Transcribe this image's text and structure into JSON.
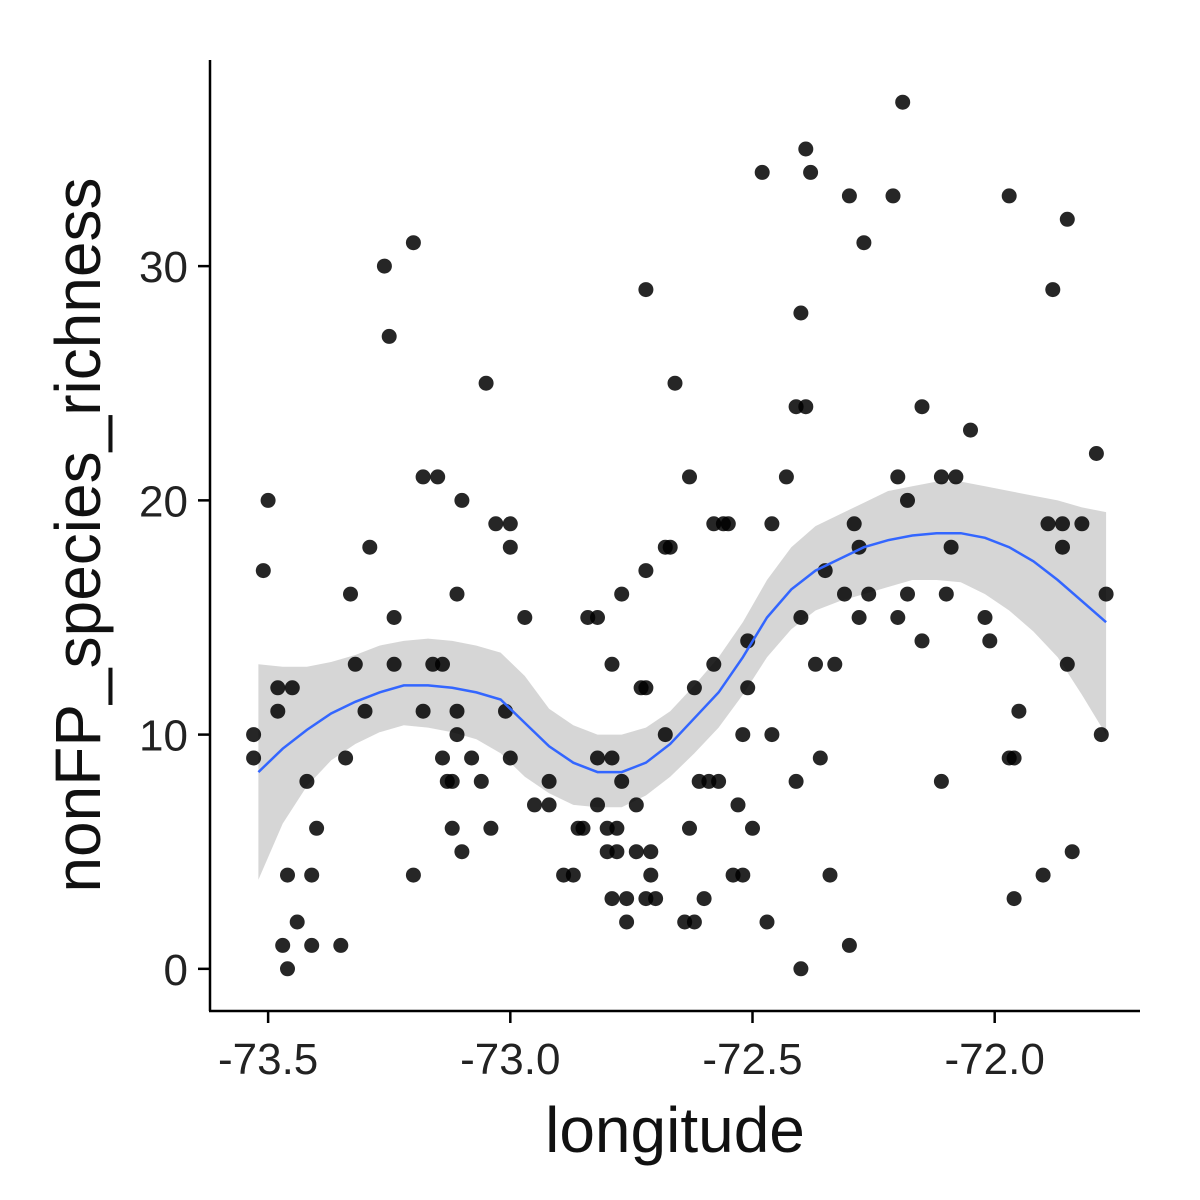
{
  "chart_data": {
    "type": "scatter",
    "title": "",
    "xlabel": "longitude",
    "ylabel": "nonFP_species_richness",
    "xlim": [
      -73.62,
      -71.7
    ],
    "ylim": [
      -1.8,
      38.8
    ],
    "x_ticks": [
      {
        "value": -73.5,
        "label": "-73.5"
      },
      {
        "value": -73.0,
        "label": "-73.0"
      },
      {
        "value": -72.5,
        "label": "-72.5"
      },
      {
        "value": -72.0,
        "label": "-72.0"
      }
    ],
    "y_ticks": [
      {
        "value": 0,
        "label": "0"
      },
      {
        "value": 10,
        "label": "10"
      },
      {
        "value": 20,
        "label": "20"
      },
      {
        "value": 30,
        "label": "30"
      }
    ],
    "grid": false,
    "colors": {
      "points": "#000000",
      "smooth_line": "#3366FF",
      "confidence_band": "#cccccc"
    },
    "points": [
      [
        -73.53,
        10
      ],
      [
        -73.53,
        9
      ],
      [
        -73.51,
        17
      ],
      [
        -73.5,
        20
      ],
      [
        -73.48,
        12
      ],
      [
        -73.48,
        11
      ],
      [
        -73.47,
        1
      ],
      [
        -73.46,
        0
      ],
      [
        -73.46,
        4
      ],
      [
        -73.45,
        12
      ],
      [
        -73.44,
        2
      ],
      [
        -73.42,
        8
      ],
      [
        -73.41,
        1
      ],
      [
        -73.41,
        4
      ],
      [
        -73.4,
        6
      ],
      [
        -73.35,
        1
      ],
      [
        -73.34,
        9
      ],
      [
        -73.33,
        16
      ],
      [
        -73.32,
        13
      ],
      [
        -73.3,
        11
      ],
      [
        -73.29,
        18
      ],
      [
        -73.26,
        30
      ],
      [
        -73.25,
        27
      ],
      [
        -73.24,
        15
      ],
      [
        -73.24,
        13
      ],
      [
        -73.2,
        31
      ],
      [
        -73.2,
        4
      ],
      [
        -73.18,
        11
      ],
      [
        -73.18,
        21
      ],
      [
        -73.16,
        13
      ],
      [
        -73.15,
        21
      ],
      [
        -73.14,
        13
      ],
      [
        -73.14,
        9
      ],
      [
        -73.13,
        8
      ],
      [
        -73.12,
        6
      ],
      [
        -73.12,
        8
      ],
      [
        -73.11,
        11
      ],
      [
        -73.11,
        10
      ],
      [
        -73.11,
        16
      ],
      [
        -73.1,
        20
      ],
      [
        -73.1,
        5
      ],
      [
        -73.08,
        9
      ],
      [
        -73.06,
        8
      ],
      [
        -73.05,
        25
      ],
      [
        -73.04,
        6
      ],
      [
        -73.03,
        19
      ],
      [
        -73.01,
        11
      ],
      [
        -73.0,
        18
      ],
      [
        -73.0,
        9
      ],
      [
        -73.0,
        19
      ],
      [
        -72.97,
        15
      ],
      [
        -72.95,
        7
      ],
      [
        -72.92,
        7
      ],
      [
        -72.92,
        8
      ],
      [
        -72.89,
        4
      ],
      [
        -72.87,
        4
      ],
      [
        -72.86,
        6
      ],
      [
        -72.85,
        6
      ],
      [
        -72.84,
        15
      ],
      [
        -72.82,
        15
      ],
      [
        -72.82,
        7
      ],
      [
        -72.82,
        9
      ],
      [
        -72.8,
        6
      ],
      [
        -72.8,
        5
      ],
      [
        -72.79,
        13
      ],
      [
        -72.79,
        9
      ],
      [
        -72.79,
        3
      ],
      [
        -72.78,
        6
      ],
      [
        -72.78,
        5
      ],
      [
        -72.77,
        8
      ],
      [
        -72.77,
        16
      ],
      [
        -72.76,
        3
      ],
      [
        -72.76,
        2
      ],
      [
        -72.74,
        7
      ],
      [
        -72.74,
        5
      ],
      [
        -72.73,
        12
      ],
      [
        -72.72,
        17
      ],
      [
        -72.72,
        12
      ],
      [
        -72.72,
        3
      ],
      [
        -72.71,
        5
      ],
      [
        -72.71,
        4
      ],
      [
        -72.72,
        29
      ],
      [
        -72.7,
        3
      ],
      [
        -72.68,
        18
      ],
      [
        -72.68,
        10
      ],
      [
        -72.67,
        18
      ],
      [
        -72.66,
        25
      ],
      [
        -72.64,
        2
      ],
      [
        -72.63,
        21
      ],
      [
        -72.63,
        6
      ],
      [
        -72.62,
        12
      ],
      [
        -72.62,
        2
      ],
      [
        -72.61,
        8
      ],
      [
        -72.6,
        3
      ],
      [
        -72.59,
        8
      ],
      [
        -72.58,
        13
      ],
      [
        -72.58,
        19
      ],
      [
        -72.57,
        8
      ],
      [
        -72.56,
        19
      ],
      [
        -72.55,
        19
      ],
      [
        -72.54,
        4
      ],
      [
        -72.53,
        7
      ],
      [
        -72.52,
        4
      ],
      [
        -72.52,
        10
      ],
      [
        -72.51,
        14
      ],
      [
        -72.51,
        12
      ],
      [
        -72.5,
        6
      ],
      [
        -72.48,
        34
      ],
      [
        -72.47,
        2
      ],
      [
        -72.46,
        10
      ],
      [
        -72.46,
        19
      ],
      [
        -72.43,
        21
      ],
      [
        -72.41,
        8
      ],
      [
        -72.41,
        24
      ],
      [
        -72.4,
        28
      ],
      [
        -72.4,
        0
      ],
      [
        -72.4,
        15
      ],
      [
        -72.39,
        35
      ],
      [
        -72.39,
        24
      ],
      [
        -72.38,
        34
      ],
      [
        -72.37,
        13
      ],
      [
        -72.36,
        9
      ],
      [
        -72.35,
        17
      ],
      [
        -72.34,
        4
      ],
      [
        -72.33,
        13
      ],
      [
        -72.31,
        16
      ],
      [
        -72.3,
        33
      ],
      [
        -72.3,
        1
      ],
      [
        -72.29,
        19
      ],
      [
        -72.28,
        15
      ],
      [
        -72.28,
        18
      ],
      [
        -72.27,
        31
      ],
      [
        -72.26,
        16
      ],
      [
        -72.21,
        33
      ],
      [
        -72.2,
        21
      ],
      [
        -72.2,
        15
      ],
      [
        -72.19,
        37
      ],
      [
        -72.18,
        16
      ],
      [
        -72.18,
        20
      ],
      [
        -72.15,
        14
      ],
      [
        -72.15,
        24
      ],
      [
        -72.11,
        21
      ],
      [
        -72.11,
        8
      ],
      [
        -72.1,
        16
      ],
      [
        -72.09,
        18
      ],
      [
        -72.08,
        21
      ],
      [
        -72.05,
        23
      ],
      [
        -72.02,
        15
      ],
      [
        -72.01,
        14
      ],
      [
        -71.97,
        33
      ],
      [
        -71.97,
        9
      ],
      [
        -71.96,
        3
      ],
      [
        -71.96,
        9
      ],
      [
        -71.95,
        11
      ],
      [
        -71.9,
        4
      ],
      [
        -71.89,
        19
      ],
      [
        -71.88,
        29
      ],
      [
        -71.86,
        18
      ],
      [
        -71.86,
        19
      ],
      [
        -71.85,
        32
      ],
      [
        -71.85,
        13
      ],
      [
        -71.84,
        5
      ],
      [
        -71.82,
        19
      ],
      [
        -71.79,
        22
      ],
      [
        -71.78,
        10
      ],
      [
        -71.77,
        16
      ]
    ],
    "smooth": {
      "x": [
        -73.52,
        -73.47,
        -73.42,
        -73.37,
        -73.32,
        -73.27,
        -73.22,
        -73.17,
        -73.12,
        -73.07,
        -73.02,
        -72.97,
        -72.92,
        -72.87,
        -72.82,
        -72.77,
        -72.72,
        -72.67,
        -72.62,
        -72.57,
        -72.52,
        -72.47,
        -72.42,
        -72.37,
        -72.32,
        -72.27,
        -72.22,
        -72.17,
        -72.12,
        -72.07,
        -72.02,
        -71.97,
        -71.92,
        -71.87,
        -71.82,
        -71.77
      ],
      "fit": [
        8.4,
        9.4,
        10.2,
        10.9,
        11.4,
        11.8,
        12.1,
        12.1,
        12.0,
        11.8,
        11.5,
        10.5,
        9.5,
        8.8,
        8.4,
        8.4,
        8.8,
        9.6,
        10.7,
        11.8,
        13.3,
        15.0,
        16.2,
        17.0,
        17.5,
        18.0,
        18.3,
        18.5,
        18.6,
        18.6,
        18.4,
        18.0,
        17.4,
        16.6,
        15.7,
        14.8
      ],
      "lower": [
        3.8,
        6.2,
        7.8,
        8.9,
        9.6,
        10.1,
        10.4,
        10.3,
        10.1,
        9.8,
        9.2,
        8.2,
        7.5,
        7.0,
        6.9,
        6.9,
        7.4,
        8.2,
        9.2,
        10.3,
        11.7,
        13.3,
        14.5,
        15.3,
        15.7,
        16.0,
        16.3,
        16.6,
        16.6,
        16.5,
        16.0,
        15.3,
        14.4,
        13.3,
        11.7,
        10.0
      ],
      "upper": [
        13.0,
        12.9,
        12.9,
        13.1,
        13.4,
        13.8,
        14.0,
        14.1,
        14.0,
        13.8,
        13.5,
        12.5,
        11.1,
        10.4,
        10.0,
        10.0,
        10.3,
        11.0,
        12.1,
        13.3,
        14.8,
        16.6,
        18.0,
        18.9,
        19.4,
        19.9,
        20.4,
        20.6,
        20.8,
        20.8,
        20.6,
        20.4,
        20.2,
        20.0,
        19.7,
        19.5
      ]
    }
  }
}
